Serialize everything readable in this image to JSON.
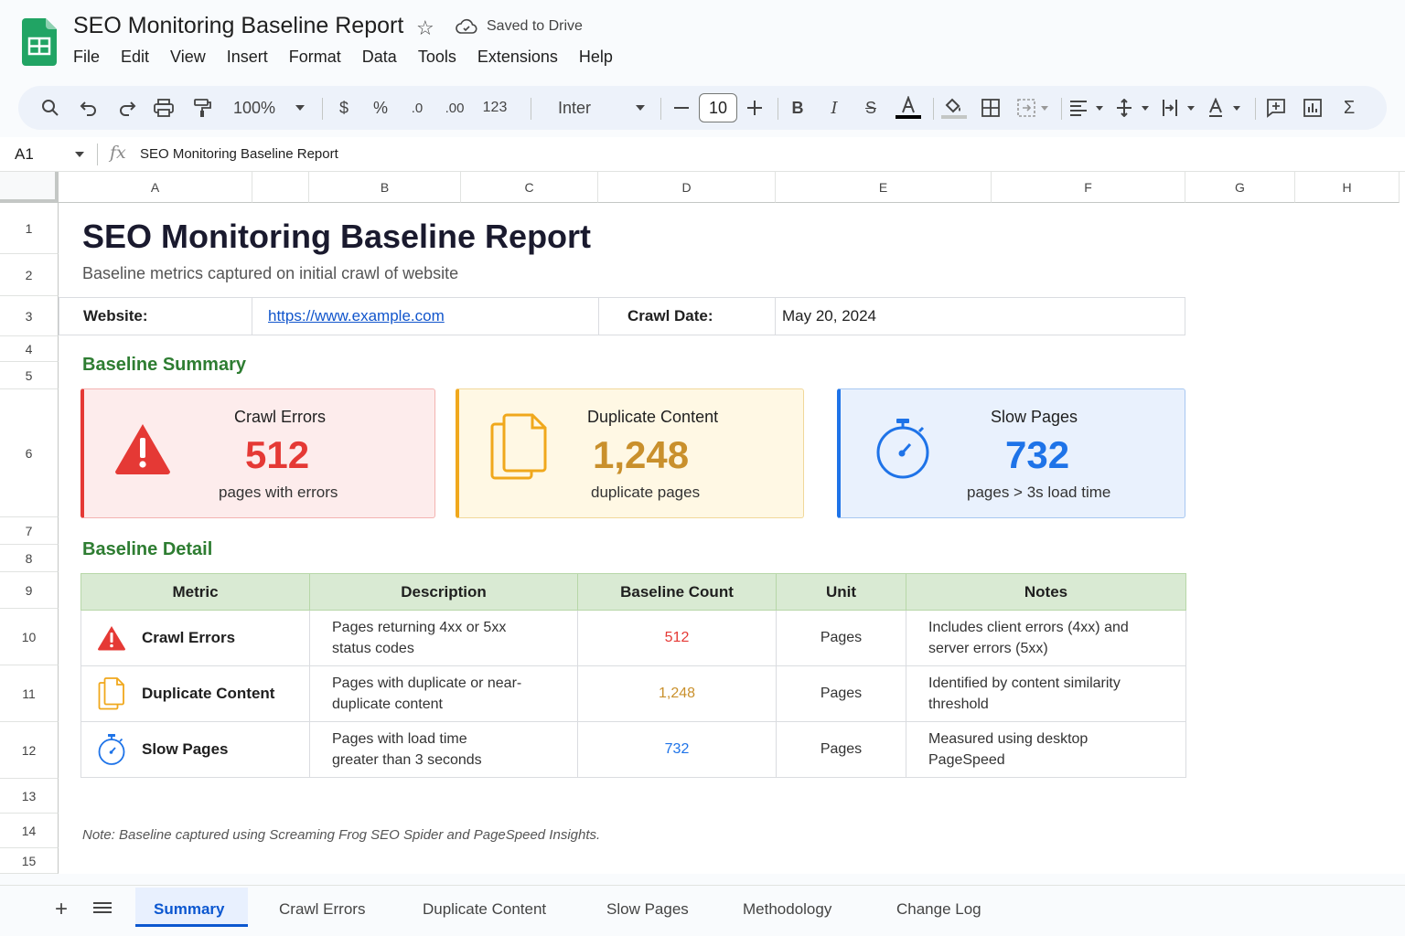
{
  "doc": {
    "title": "SEO Monitoring Baseline Report",
    "saved_status": "Saved to Drive"
  },
  "menu": [
    "File",
    "Edit",
    "View",
    "Insert",
    "Format",
    "Data",
    "Tools",
    "Extensions",
    "Help"
  ],
  "toolbar": {
    "zoom": "100%",
    "currency": "$",
    "percent": "%",
    "decrease_decimal": ".0",
    "increase_decimal": ".00",
    "number_format": "123",
    "font": "Inter",
    "font_size": "10"
  },
  "formula_bar": {
    "cell_ref": "A1",
    "content": "SEO Monitoring Baseline Report"
  },
  "columns": [
    "A",
    "B",
    "C",
    "D",
    "E",
    "F",
    "G",
    "H"
  ],
  "rows": [
    "1",
    "2",
    "3",
    "4",
    "5",
    "6",
    "7",
    "8",
    "9",
    "10",
    "11",
    "12",
    "13",
    "14",
    "15"
  ],
  "sheet": {
    "title": "SEO Monitoring Baseline Report",
    "subtitle": "Baseline metrics captured on initial crawl of website",
    "website_label": "Website:",
    "website_value": "https://www.example.com",
    "crawl_date_label": "Crawl Date:",
    "crawl_date_value": "May 20, 2024",
    "summary_heading": "Baseline Summary",
    "detail_heading": "Baseline Detail",
    "note": "Note: Baseline captured using Screaming Frog SEO Spider and PageSpeed Insights."
  },
  "cards": [
    {
      "title": "Crawl Errors",
      "value": "512",
      "sub": "pages with errors",
      "color": "#e53935",
      "icon": "warning-icon"
    },
    {
      "title": "Duplicate Content",
      "value": "1,248",
      "sub": "duplicate pages",
      "color": "#c9902c",
      "icon": "duplicate-pages-icon"
    },
    {
      "title": "Slow Pages",
      "value": "732",
      "sub": "pages > 3s load time",
      "color": "#1e73e8",
      "icon": "stopwatch-icon"
    }
  ],
  "table": {
    "headers": [
      "Metric",
      "Description",
      "Baseline Count",
      "Unit",
      "Notes"
    ],
    "rows": [
      {
        "metric": "Crawl Errors",
        "desc1": "Pages returning 4xx or 5xx",
        "desc2": "status codes",
        "count": "512",
        "unit": "Pages",
        "note1": "Includes client errors (4xx) and",
        "note2": "server errors (5xx)"
      },
      {
        "metric": "Duplicate Content",
        "desc1": "Pages with duplicate or near-",
        "desc2": "duplicate content",
        "count": "1,248",
        "unit": "Pages",
        "note1": "Identified by content similarity",
        "note2": "threshold"
      },
      {
        "metric": "Slow Pages",
        "desc1": "Pages with load time",
        "desc2": "greater than 3 seconds",
        "count": "732",
        "unit": "Pages",
        "note1": "Measured using desktop",
        "note2": "PageSpeed"
      }
    ]
  },
  "tabs": [
    "Summary",
    "Crawl Errors",
    "Duplicate Content",
    "Slow Pages",
    "Methodology",
    "Change Log"
  ],
  "colors": {
    "accent": "#0b57d0",
    "section_green": "#2e7d32",
    "header_green": "#d9ead3"
  }
}
